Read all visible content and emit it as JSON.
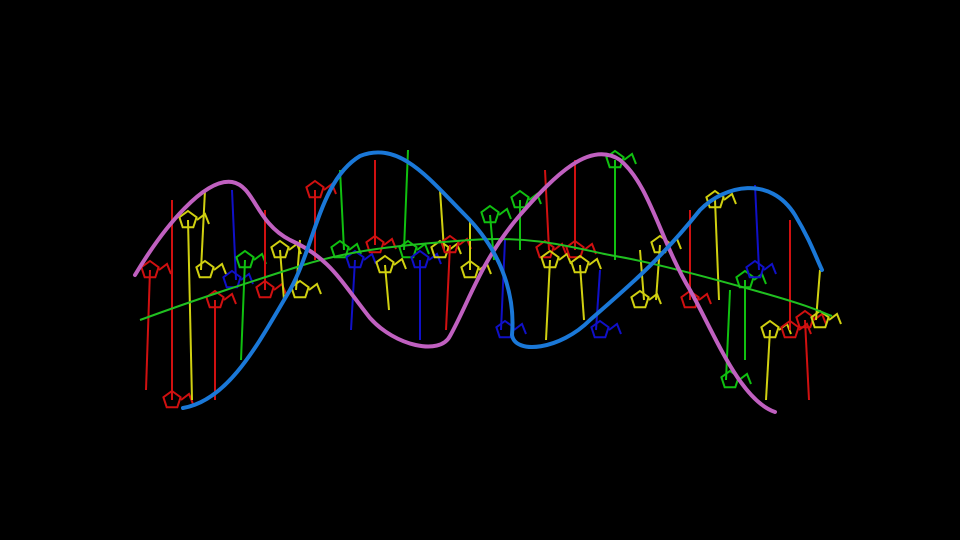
{
  "scene": {
    "background_color": "#000000",
    "strand_a_color": "#c060c0",
    "strand_b_color": "#1a78d8",
    "axis_color": "#20c020",
    "base_colors": [
      "#d01010",
      "#d0d010",
      "#1010c8",
      "#10c010"
    ]
  }
}
